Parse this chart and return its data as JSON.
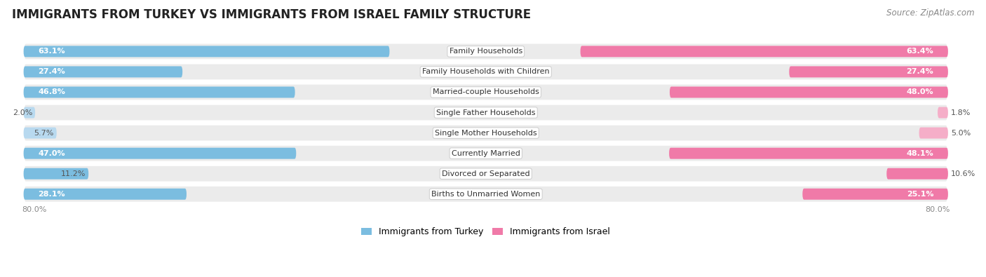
{
  "title": "IMMIGRANTS FROM TURKEY VS IMMIGRANTS FROM ISRAEL FAMILY STRUCTURE",
  "source": "Source: ZipAtlas.com",
  "categories": [
    "Family Households",
    "Family Households with Children",
    "Married-couple Households",
    "Single Father Households",
    "Single Mother Households",
    "Currently Married",
    "Divorced or Separated",
    "Births to Unmarried Women"
  ],
  "turkey_values": [
    63.1,
    27.4,
    46.8,
    2.0,
    5.7,
    47.0,
    11.2,
    28.1
  ],
  "israel_values": [
    63.4,
    27.4,
    48.0,
    1.8,
    5.0,
    48.1,
    10.6,
    25.1
  ],
  "turkey_color": "#7bbde0",
  "turkey_color_light": "#b8d9ef",
  "israel_color": "#f07aa8",
  "israel_color_light": "#f5aec8",
  "turkey_label": "Immigrants from Turkey",
  "israel_label": "Immigrants from Israel",
  "max_value": 80.0,
  "row_bg_color": "#ebebeb",
  "title_fontsize": 12,
  "source_fontsize": 8.5,
  "label_fontsize": 8,
  "value_fontsize": 8,
  "axis_label_fontsize": 8
}
